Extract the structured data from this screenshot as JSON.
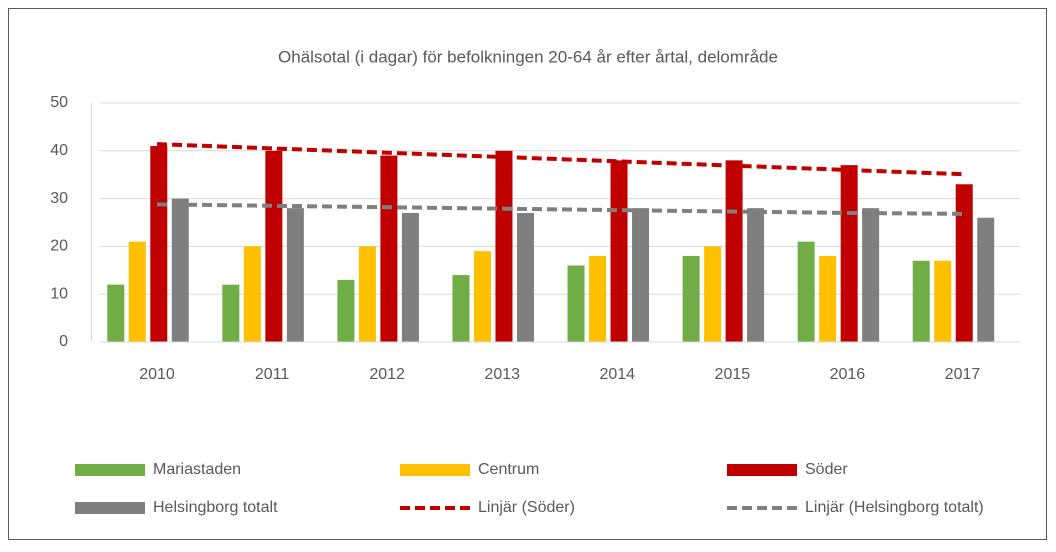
{
  "chart_data": {
    "type": "bar",
    "title": "Ohälsotal (i dagar) för befolkningen 20-64 år efter årtal, delområde",
    "categories": [
      "2010",
      "2011",
      "2012",
      "2013",
      "2014",
      "2015",
      "2016",
      "2017"
    ],
    "series": [
      {
        "name": "Mariastaden",
        "color": "#70ad47",
        "type": "bar",
        "values": [
          12,
          12,
          13,
          14,
          16,
          18,
          21,
          17
        ]
      },
      {
        "name": "Centrum",
        "color": "#ffc000",
        "type": "bar",
        "values": [
          21,
          20,
          20,
          19,
          18,
          20,
          18,
          17
        ]
      },
      {
        "name": "Söder",
        "color": "#c00000",
        "type": "bar",
        "values": [
          41,
          40,
          39,
          40,
          38,
          38,
          37,
          33
        ]
      },
      {
        "name": "Helsingborg totalt",
        "color": "#7f7f7f",
        "type": "bar",
        "values": [
          30,
          28,
          27,
          27,
          28,
          28,
          28,
          26
        ]
      },
      {
        "name": "Linjär (Söder)",
        "color": "#c00000",
        "type": "line",
        "dashed": true,
        "values": [
          41.4,
          40.5,
          39.6,
          38.7,
          37.8,
          36.9,
          36.0,
          35.1
        ]
      },
      {
        "name": "Linjär (Helsingborg totalt)",
        "color": "#7f7f7f",
        "type": "line",
        "dashed": true,
        "values": [
          28.8,
          28.5,
          28.2,
          27.9,
          27.6,
          27.3,
          27.0,
          26.8
        ]
      }
    ],
    "ylim": [
      0,
      50
    ],
    "yticks": [
      0,
      10,
      20,
      30,
      40,
      50
    ],
    "grid": true,
    "legend": "bottom"
  }
}
